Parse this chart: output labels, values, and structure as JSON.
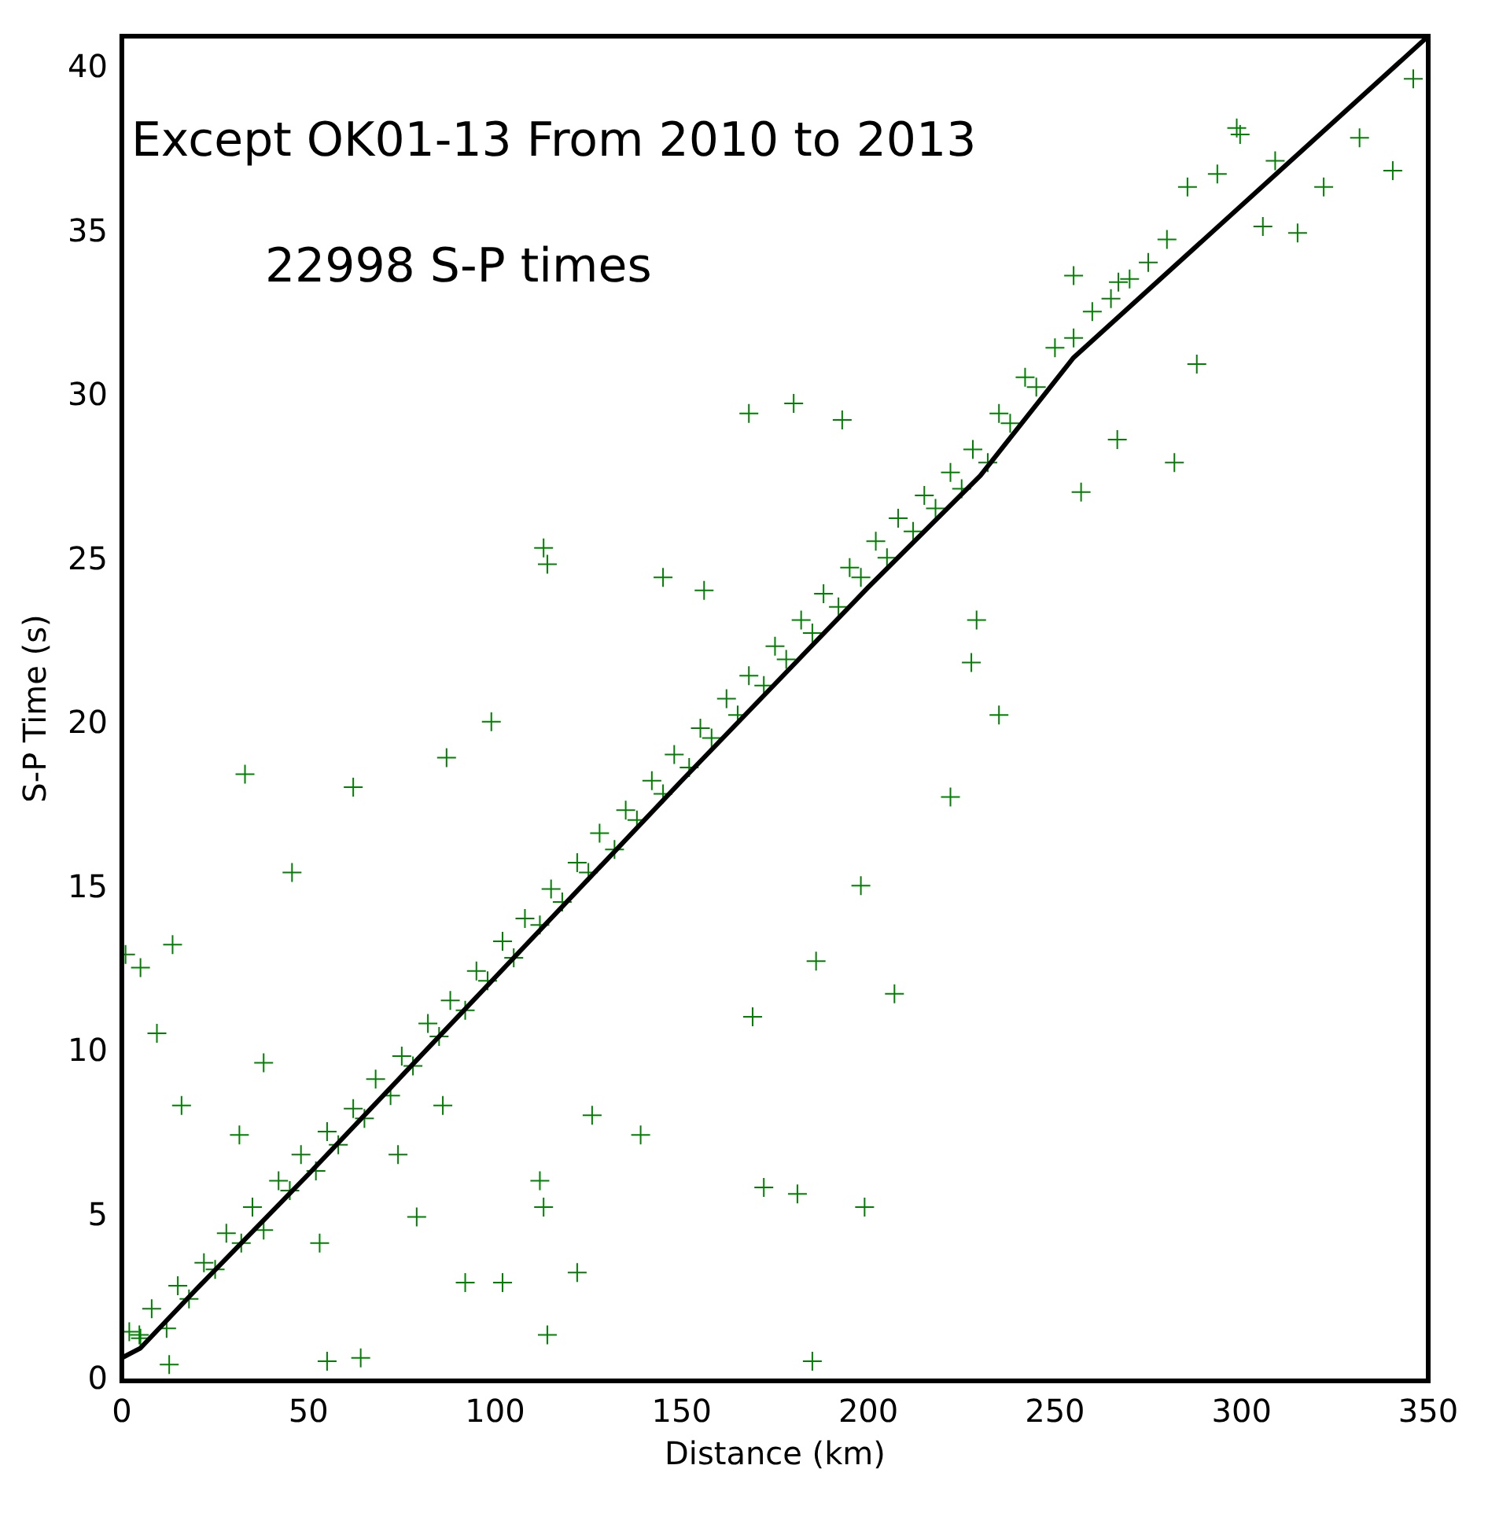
{
  "chart_data": {
    "type": "scatter",
    "xlabel": "Distance (km)",
    "ylabel": "S-P Time (s)",
    "annotations": [
      "Except OK01-13 From 2010 to 2013",
      "22998 S-P times"
    ],
    "xlim": [
      0,
      350
    ],
    "xticks": [
      0,
      50,
      100,
      150,
      200,
      250,
      300,
      350
    ],
    "ylim": [
      0,
      41
    ],
    "yticks": [
      0,
      5,
      10,
      15,
      20,
      25,
      30,
      35,
      40
    ],
    "grid": false,
    "legend": false,
    "series": [
      {
        "type": "scatter",
        "color": "#008000",
        "marker": "cross",
        "x": [
          2,
          5,
          8,
          12,
          15,
          18,
          22,
          25,
          28,
          32,
          35,
          38,
          42,
          45,
          48,
          52,
          55,
          58,
          62,
          65,
          68,
          72,
          75,
          78,
          82,
          85,
          88,
          92,
          95,
          98,
          102,
          105,
          108,
          112,
          115,
          118,
          122,
          125,
          128,
          132,
          135,
          138,
          142,
          145,
          148,
          152,
          155,
          158,
          162,
          165,
          168,
          172,
          175,
          178,
          182,
          185,
          188,
          192,
          195,
          198,
          202,
          205,
          208,
          212,
          215,
          218,
          222,
          225,
          228,
          232,
          235,
          238,
          242,
          245,
          250,
          255,
          260,
          265,
          270,
          275,
          280,
          1,
          5,
          13.6,
          9.4,
          33,
          62,
          45.6,
          113,
          114,
          87,
          99,
          168,
          180,
          193,
          145,
          156,
          235,
          222,
          198,
          186,
          207,
          169,
          172,
          181,
          199,
          185,
          139,
          126,
          112,
          113,
          122,
          114,
          102,
          92,
          64,
          55,
          53,
          79,
          74,
          86,
          38,
          16,
          31.5,
          4.7,
          12.7,
          346,
          340.5,
          331.6,
          315,
          305.7,
          298.7,
          299.6,
          288,
          282,
          322,
          309,
          285.5,
          293.5,
          266.7,
          257,
          255,
          267,
          229,
          227.6
        ],
        "values": [
          1.5,
          1.3,
          2.2,
          1.6,
          2.9,
          2.5,
          3.6,
          3.4,
          4.5,
          4.2,
          5.3,
          4.6,
          6.1,
          5.8,
          6.9,
          6.4,
          7.6,
          7.2,
          8.3,
          8.0,
          9.2,
          8.7,
          9.9,
          9.6,
          10.9,
          10.5,
          11.6,
          11.3,
          12.5,
          12.2,
          13.4,
          12.9,
          14.1,
          13.9,
          15.0,
          14.6,
          15.8,
          15.5,
          16.7,
          16.2,
          17.4,
          17.1,
          18.3,
          17.9,
          19.1,
          18.7,
          19.9,
          19.6,
          20.8,
          20.3,
          21.5,
          21.2,
          22.4,
          22.0,
          23.2,
          22.8,
          24.0,
          23.6,
          24.8,
          24.5,
          25.6,
          25.1,
          26.3,
          25.9,
          27.0,
          26.6,
          27.7,
          27.2,
          28.4,
          28.0,
          29.5,
          29.2,
          30.6,
          30.3,
          31.5,
          31.8,
          32.6,
          33.0,
          33.6,
          34.1,
          34.8,
          13.0,
          12.6,
          13.3,
          10.6,
          18.5,
          18.1,
          15.5,
          25.4,
          24.9,
          19.0,
          20.1,
          29.5,
          29.8,
          29.3,
          24.5,
          24.1,
          20.3,
          17.8,
          15.1,
          12.8,
          11.8,
          11.1,
          5.9,
          5.7,
          5.3,
          0.6,
          7.5,
          8.1,
          6.1,
          5.3,
          3.3,
          1.4,
          3.0,
          3.0,
          0.7,
          0.6,
          4.2,
          5.0,
          6.9,
          8.4,
          9.7,
          8.4,
          7.5,
          1.4,
          0.5,
          39.7,
          36.9,
          37.9,
          35.0,
          35.2,
          38.2,
          38.0,
          31.0,
          28.0,
          36.4,
          37.2,
          36.4,
          36.8,
          28.7,
          27.1,
          33.7,
          33.5,
          23.2,
          21.9
        ]
      },
      {
        "type": "line",
        "color": "#000000",
        "x": [
          0,
          5,
          20,
          50,
          100,
          150,
          200,
          230,
          255,
          350
        ],
        "values": [
          0.7,
          1.0,
          2.8,
          6.3,
          12.3,
          18.3,
          24.2,
          27.6,
          31.2,
          41
        ]
      }
    ]
  }
}
